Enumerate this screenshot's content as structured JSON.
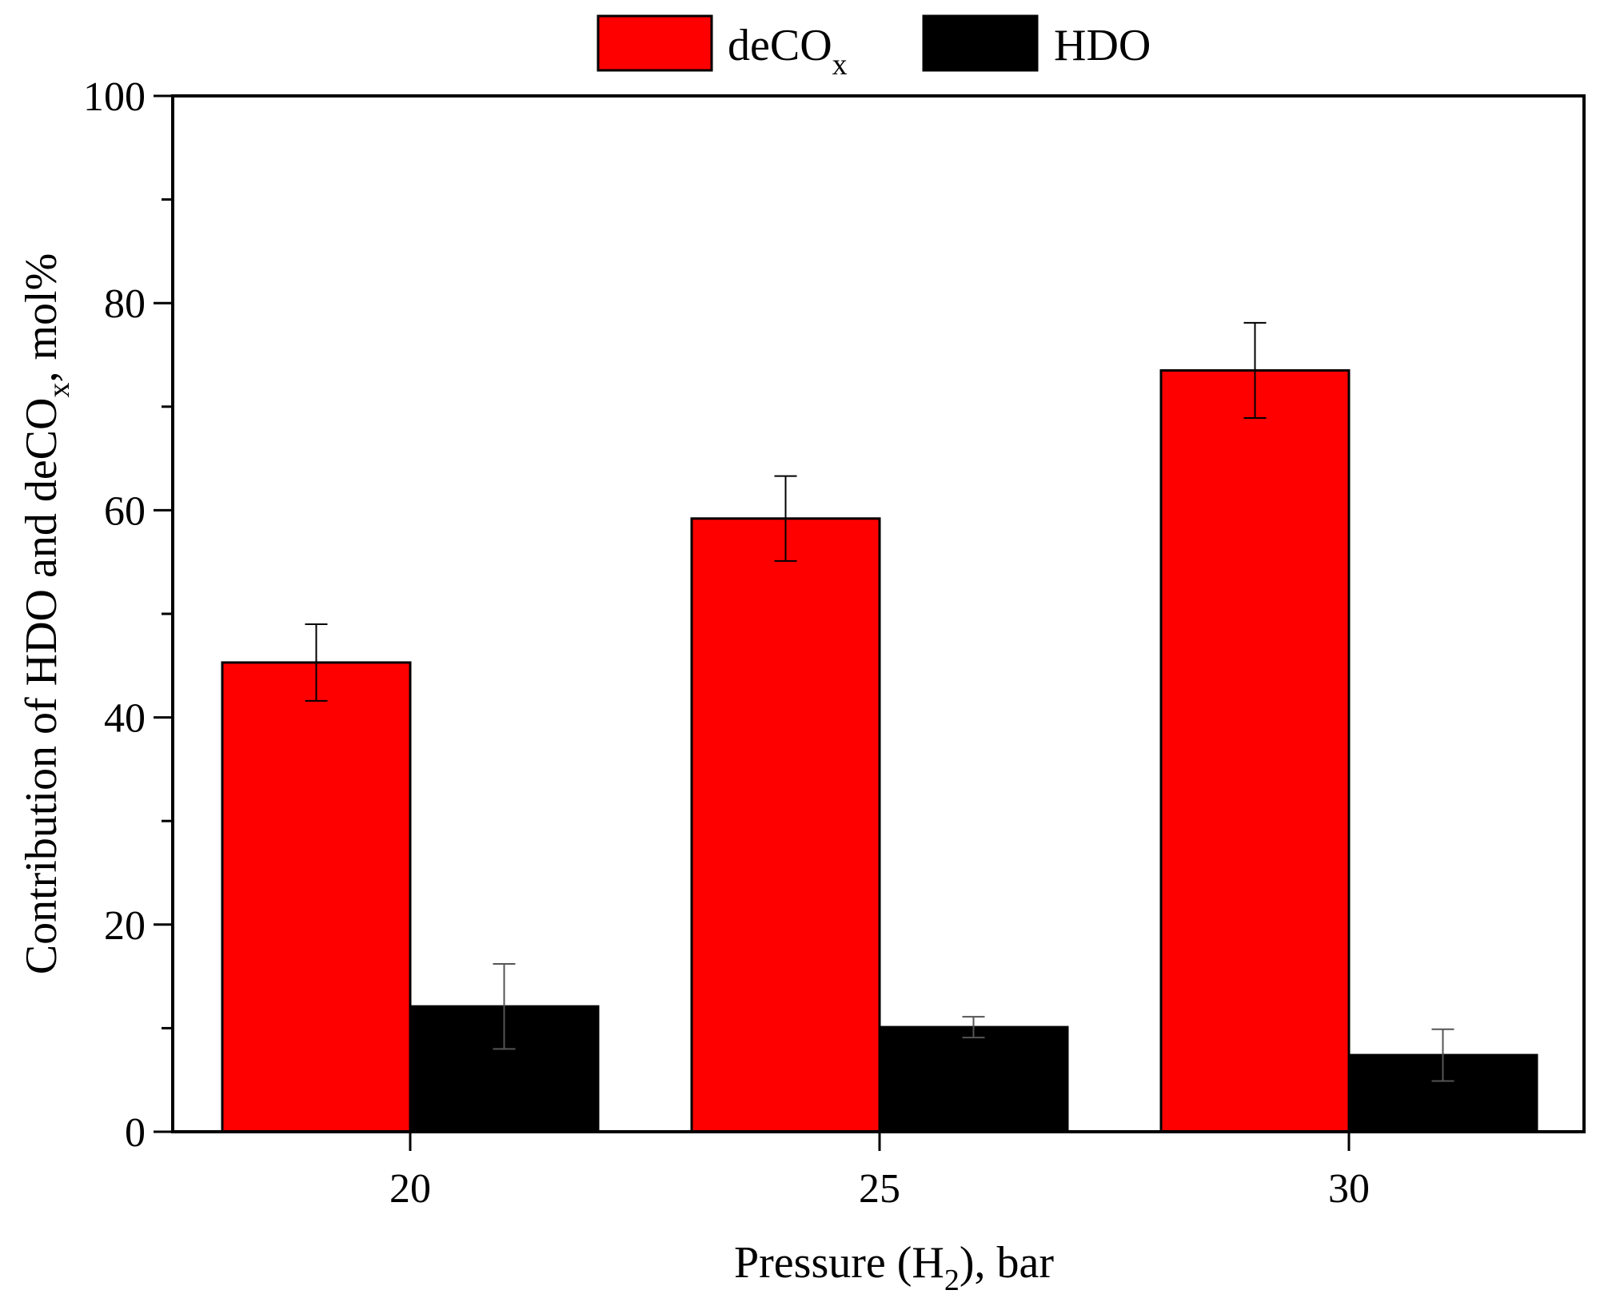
{
  "chart_data": {
    "type": "bar",
    "categories": [
      "20",
      "25",
      "30"
    ],
    "series": [
      {
        "name": "deCOx",
        "label_main": "deCO",
        "label_sub": "x",
        "color": "#ff0000",
        "values": [
          45.3,
          59.2,
          73.5
        ],
        "errors": [
          3.7,
          4.1,
          4.6
        ]
      },
      {
        "name": "HDO",
        "label_main": "HDO",
        "label_sub": "",
        "color": "#000000",
        "values": [
          12.1,
          10.1,
          7.4
        ],
        "errors": [
          4.1,
          1.0,
          2.5
        ]
      }
    ],
    "ylim": [
      0,
      100
    ],
    "yticks": [
      "0",
      "20",
      "40",
      "60",
      "80",
      "100"
    ],
    "xlabel": {
      "prefix": "Pressure (H",
      "sub": "2",
      "suffix": "), bar"
    },
    "ylabel": {
      "prefix": "Contribution of HDO and deCO",
      "sub": "x",
      "suffix": ", mol%"
    },
    "legend_position": "top-center"
  }
}
